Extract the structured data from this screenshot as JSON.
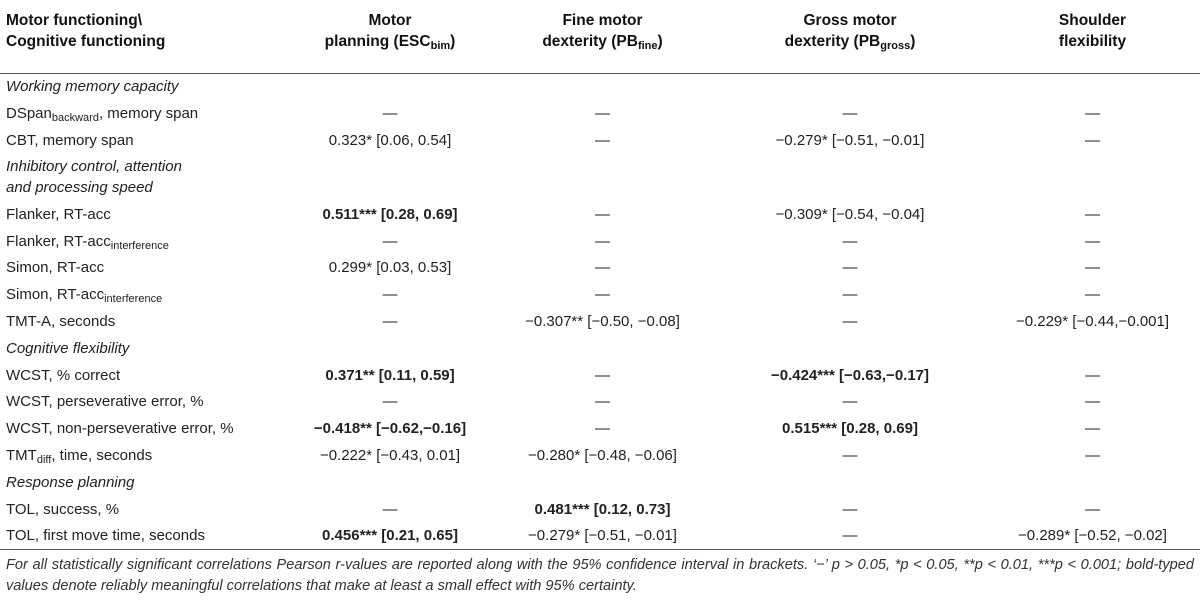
{
  "header": {
    "col0_line1": "Motor functioning\\",
    "col0_line2": "Cognitive functioning",
    "col1_line1": "Motor",
    "col1_line2": "planning (ESC",
    "col1_sub": "bim",
    "col1_end": ")",
    "col2_line1": "Fine motor",
    "col2_line2": "dexterity (PB",
    "col2_sub": "fine",
    "col2_end": ")",
    "col3_line1": "Gross motor",
    "col3_line2": "dexterity (PB",
    "col3_sub": "gross",
    "col3_end": ")",
    "col4_line1": "Shoulder",
    "col4_line2": "flexibility"
  },
  "sections": {
    "s1": "Working memory capacity",
    "s2_line1": "Inhibitory control, attention",
    "s2_line2": "and processing speed",
    "s3": "Cognitive flexibility",
    "s4": "Response planning"
  },
  "rows": [
    {
      "label": "DSpan",
      "label_sub": "backward",
      "label_end": ", memory span",
      "c1": "—",
      "c2": "—",
      "c3": "—",
      "c4": "—"
    },
    {
      "label": "CBT, memory span",
      "c1": "0.323* [0.06, 0.54]",
      "c2": "—",
      "c3": "−0.279* [−0.51, −0.01]",
      "c4": "—"
    },
    {
      "label": "Flanker, RT-acc",
      "c1": "0.511*** [0.28, 0.69]",
      "c2": "—",
      "c3": "−0.309* [−0.54, −0.04]",
      "c4": "—"
    },
    {
      "label": "Flanker, RT-acc",
      "label_sub": "interference",
      "c1": "—",
      "c2": "—",
      "c3": "—",
      "c4": "—"
    },
    {
      "label": "Simon, RT-acc",
      "c1": "0.299* [0.03, 0.53]",
      "c2": "—",
      "c3": "—",
      "c4": "—"
    },
    {
      "label": "Simon, RT-acc",
      "label_sub": "interference",
      "c1": "—",
      "c2": "—",
      "c3": "—",
      "c4": "—"
    },
    {
      "label": "TMT-A, seconds",
      "c1": "—",
      "c2": "−0.307** [−0.50, −0.08]",
      "c3": "—",
      "c4": "−0.229* [−0.44,−0.001]"
    },
    {
      "label": "WCST, % correct",
      "c1": "0.371** [0.11, 0.59]",
      "c2": "—",
      "c3": "−0.424*** [−0.63,−0.17]",
      "c4": "—"
    },
    {
      "label": "WCST, perseverative error, %",
      "c1": "—",
      "c2": "—",
      "c3": "—",
      "c4": "—"
    },
    {
      "label": "WCST, non-perseverative error, %",
      "c1": "−0.418** [−0.62,−0.16]",
      "c2": "—",
      "c3": "0.515*** [0.28, 0.69]",
      "c4": "—"
    },
    {
      "label": "TMT",
      "label_sub": "diff",
      "label_end": ", time, seconds",
      "c1": "−0.222* [−0.43, 0.01]",
      "c2": "−0.280* [−0.48, −0.06]",
      "c3": "—",
      "c4": "—"
    },
    {
      "label": "TOL, success, %",
      "c1": "—",
      "c2": "0.481*** [0.12, 0.73]",
      "c3": "—",
      "c4": "—"
    },
    {
      "label": "TOL, first move time, seconds",
      "c1": "0.456*** [0.21, 0.65]",
      "c2": "−0.279* [−0.51, −0.01]",
      "c3": "—",
      "c4": "−0.289* [−0.52, −0.02]"
    }
  ],
  "footnote": "For all statistically significant correlations Pearson r-values are reported along with the 95% confidence interval in brackets. ‘−’ p > 0.05, *p < 0.05, **p < 0.01, ***p < 0.001; bold-typed values denote reliably meaningful correlations that make at least a small effect with 95% certainty."
}
